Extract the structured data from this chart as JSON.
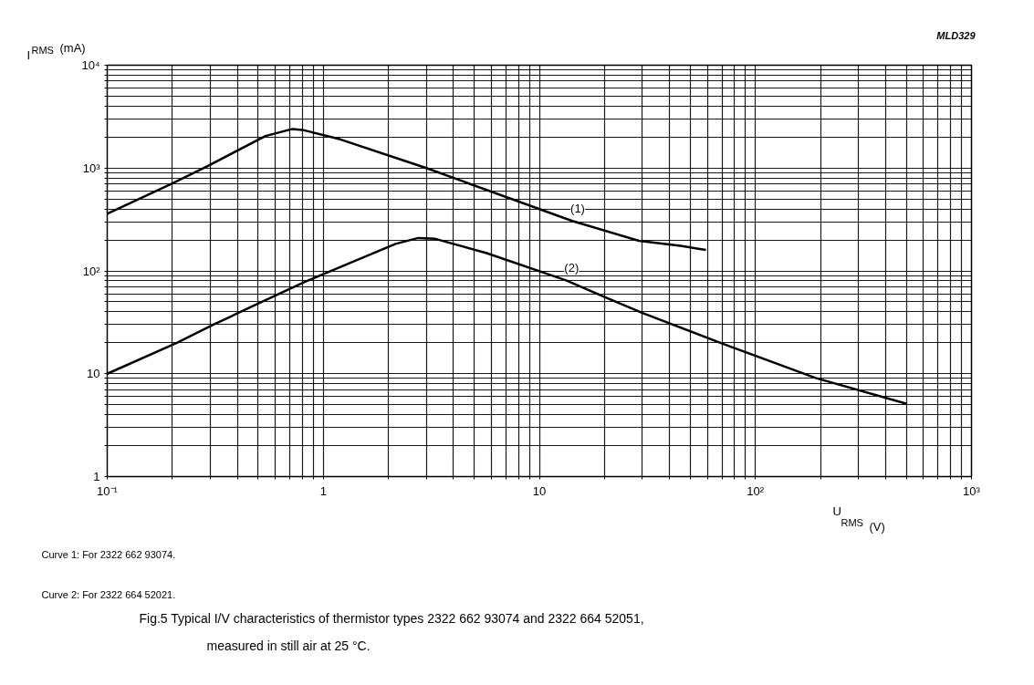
{
  "chart_data": {
    "type": "line",
    "title": "Fig.5    Typical I/V characteristics of thermistor types 2322 662 93074 and 2322 664 52051,\nmeasured in still air at 25 °C.",
    "xlabel": "U$_{RMS}$ (V)",
    "ylabel": "I$_{RMS}$ (mA)",
    "log": "xy",
    "grid": true,
    "marker": "none",
    "line_style": "solid",
    "xlim": [
      0.1,
      1000
    ],
    "ylim": [
      1,
      10000
    ],
    "xticks": [
      {
        "value": 0.1,
        "label": "10⁻¹"
      },
      {
        "value": 0.2,
        "label": null
      },
      {
        "value": 0.3,
        "label": null
      },
      {
        "value": 0.4,
        "label": null
      },
      {
        "value": 0.5,
        "label": null
      },
      {
        "value": 0.6,
        "label": null
      },
      {
        "value": 0.7,
        "label": null
      },
      {
        "value": 0.8,
        "label": null
      },
      {
        "value": 0.9,
        "label": null
      },
      1,
      {
        "value": 2,
        "label": null
      },
      {
        "value": 3,
        "label": null
      },
      {
        "value": 4,
        "label": null
      },
      {
        "value": 5,
        "label": null
      },
      {
        "value": 6,
        "label": null
      },
      {
        "value": 7,
        "label": null
      },
      {
        "value": 8,
        "label": null
      },
      {
        "value": 9,
        "label": null
      },
      10,
      {
        "value": 20,
        "label": null
      },
      {
        "value": 30,
        "label": null
      },
      {
        "value": 40,
        "label": null
      },
      {
        "value": 50,
        "label": null
      },
      {
        "value": 60,
        "label": null
      },
      {
        "value": 70,
        "label": null
      },
      {
        "value": 80,
        "label": null
      },
      {
        "value": 90,
        "label": null
      },
      {
        "value": 100,
        "label": "10²"
      },
      {
        "value": 200,
        "label": null
      },
      {
        "value": 300,
        "label": null
      },
      {
        "value": 400,
        "label": null
      },
      {
        "value": 500,
        "label": null
      },
      {
        "value": 600,
        "label": null
      },
      {
        "value": 700,
        "label": null
      },
      {
        "value": 800,
        "label": null
      },
      {
        "value": 900,
        "label": null
      },
      {
        "value": 1000,
        "label": "10³"
      }
    ],
    "yticks": [
      1,
      {
        "value": 2,
        "label": null
      },
      {
        "value": 3,
        "label": null
      },
      {
        "value": 4,
        "label": null
      },
      {
        "value": 5,
        "label": null
      },
      {
        "value": 6,
        "label": null
      },
      {
        "value": 7,
        "label": null
      },
      {
        "value": 8,
        "label": null
      },
      {
        "value": 9,
        "label": null
      },
      10,
      {
        "value": 20,
        "label": null
      },
      {
        "value": 30,
        "label": null
      },
      {
        "value": 40,
        "label": null
      },
      {
        "value": 50,
        "label": null
      },
      {
        "value": 60,
        "label": null
      },
      {
        "value": 70,
        "label": null
      },
      {
        "value": 80,
        "label": null
      },
      {
        "value": 90,
        "label": null
      },
      {
        "value": 100,
        "label": "10²"
      },
      {
        "value": 200,
        "label": null
      },
      {
        "value": 300,
        "label": null
      },
      {
        "value": 400,
        "label": null
      },
      {
        "value": 500,
        "label": null
      },
      {
        "value": 600,
        "label": null
      },
      {
        "value": 700,
        "label": null
      },
      {
        "value": 800,
        "label": null
      },
      {
        "value": 900,
        "label": null
      },
      {
        "value": 1000,
        "label": "10³"
      },
      {
        "value": 2000,
        "label": null
      },
      {
        "value": 3000,
        "label": null
      },
      {
        "value": 4000,
        "label": null
      },
      {
        "value": 5000,
        "label": null
      },
      {
        "value": 6000,
        "label": null
      },
      {
        "value": 7000,
        "label": null
      },
      {
        "value": 8000,
        "label": null
      },
      {
        "value": 9000,
        "label": null
      },
      {
        "value": 10000,
        "label": "10⁴"
      }
    ],
    "series": [
      {
        "name": "(1)",
        "color": "#000000",
        "x": [
          0.1,
          0.2,
          0.29,
          0.54,
          0.72,
          0.8,
          1.2,
          3.0,
          14.2,
          28.9,
          45,
          59
        ],
        "values": [
          360,
          710,
          1040,
          2050,
          2400,
          2350,
          1900,
          1000,
          306,
          196,
          175,
          160
        ]
      },
      {
        "name": "(2)",
        "color": "#000000",
        "x": [
          0.1,
          0.21,
          0.31,
          0.52,
          0.82,
          2.16,
          2.75,
          3.3,
          5.7,
          13.3,
          19.6,
          30,
          72,
          190,
          502
        ],
        "values": [
          10,
          20,
          30,
          50,
          78,
          183,
          209,
          205,
          149,
          81,
          57,
          39,
          19.3,
          9.1,
          5.1
        ]
      }
    ],
    "annotations": [
      "MLD329",
      "Curve 1: For 2322 662 93074.",
      "Curve 2: For 2322 664 52021."
    ]
  }
}
